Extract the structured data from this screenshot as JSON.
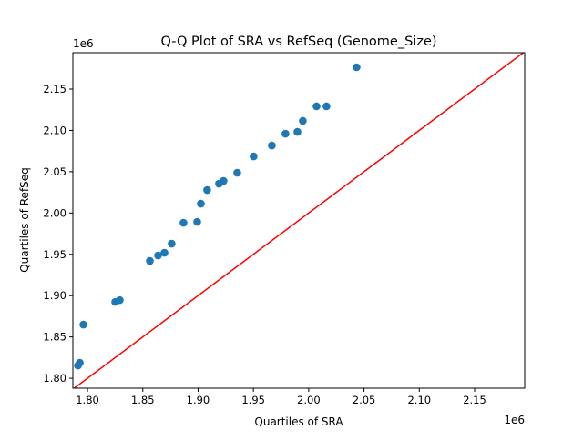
{
  "chart_data": {
    "type": "scatter",
    "title": "Q-Q Plot of SRA vs RefSeq (Genome_Size)",
    "xlabel": "Quartiles of SRA",
    "ylabel": "Quartiles of RefSeq",
    "x_offset_label": "1e6",
    "y_offset_label": "1e6",
    "xlim": [
      1.7868,
      2.1953
    ],
    "ylim": [
      1.788,
      2.194
    ],
    "xticks": [
      1.8,
      1.85,
      1.9,
      1.95,
      2.0,
      2.05,
      2.1,
      2.15
    ],
    "xtick_labels": [
      "1.80",
      "1.85",
      "1.90",
      "1.95",
      "2.00",
      "2.05",
      "2.10",
      "2.15"
    ],
    "yticks": [
      1.8,
      1.85,
      1.9,
      1.95,
      2.0,
      2.05,
      2.1,
      2.15
    ],
    "ytick_labels": [
      "1.80",
      "1.85",
      "1.90",
      "1.95",
      "2.00",
      "2.05",
      "2.10",
      "2.15"
    ],
    "grid": false,
    "point_color": "#1f77b4",
    "reference_line": {
      "type": "y=x",
      "color": "#ff0000"
    },
    "points": [
      [
        1.7914,
        1.8154
      ],
      [
        1.793,
        1.8187
      ],
      [
        1.7963,
        1.8649
      ],
      [
        1.8251,
        1.8924
      ],
      [
        1.8292,
        1.8946
      ],
      [
        1.8564,
        1.942
      ],
      [
        1.8638,
        1.9486
      ],
      [
        1.8696,
        1.9519
      ],
      [
        1.8761,
        1.9629
      ],
      [
        1.8868,
        1.9882
      ],
      [
        1.8992,
        1.9893
      ],
      [
        1.9025,
        2.0113
      ],
      [
        1.9082,
        2.0278
      ],
      [
        1.9189,
        2.0355
      ],
      [
        1.923,
        2.0388
      ],
      [
        1.9354,
        2.0487
      ],
      [
        1.9502,
        2.0685
      ],
      [
        1.9667,
        2.0817
      ],
      [
        1.979,
        2.096
      ],
      [
        1.9898,
        2.0982
      ],
      [
        1.9947,
        2.1115
      ],
      [
        2.0071,
        2.1291
      ],
      [
        2.0161,
        2.1291
      ],
      [
        2.0433,
        2.1764
      ]
    ]
  }
}
